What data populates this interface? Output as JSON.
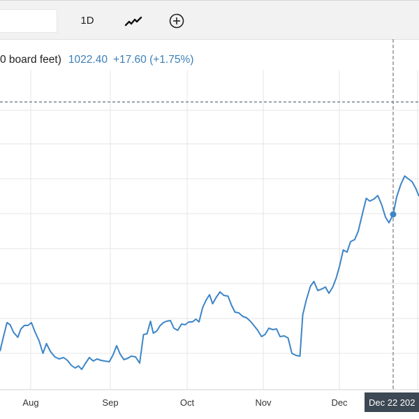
{
  "toolbar": {
    "search_value": "",
    "interval_label": "1D",
    "line_type_icon": "line-chart-icon",
    "indicator_icon": "circle-plus-icon"
  },
  "legend": {
    "name": "0 board feet)",
    "value": "1022.40",
    "change": "+17.60 (+1.75%)"
  },
  "crosshair": {
    "date_label": "Dec 22 202"
  },
  "colors": {
    "line": "#3d85c6",
    "grid": "#e6e6e6",
    "crosshair": "#777777",
    "toolbar_bg": "#f2f2f2",
    "label_bg": "#3c4853"
  },
  "chart_data": {
    "type": "line",
    "title": "",
    "xlabel": "",
    "ylabel": "",
    "x_tick_labels": [
      "Aug",
      "Sep",
      "Oct",
      "Nov",
      "Dec"
    ],
    "grid": true,
    "y_tick_labels_visible": false,
    "series": [
      {
        "values": [
          [
            0.0,
            805
          ],
          [
            4.0,
            822
          ],
          [
            10.0,
            846
          ],
          [
            14.5,
            843
          ],
          [
            19.5,
            832
          ],
          [
            25.5,
            825
          ],
          [
            30.0,
            837
          ],
          [
            35.0,
            842
          ],
          [
            40.0,
            842
          ],
          [
            45.0,
            846
          ],
          [
            50.0,
            833
          ],
          [
            56.0,
            820
          ],
          [
            61.5,
            802
          ],
          [
            66.5,
            816
          ],
          [
            72.0,
            805
          ],
          [
            78.5,
            797
          ],
          [
            84.5,
            794
          ],
          [
            91.0,
            796
          ],
          [
            96.5,
            792
          ],
          [
            102.0,
            785
          ],
          [
            107.5,
            781
          ],
          [
            112.5,
            784
          ],
          [
            117.0,
            779
          ],
          [
            122.5,
            788
          ],
          [
            128.0,
            796
          ],
          [
            133.5,
            791
          ],
          [
            139.0,
            794
          ],
          [
            144.5,
            792
          ],
          [
            150.0,
            791
          ],
          [
            156.5,
            790
          ],
          [
            162.0,
            800
          ],
          [
            167.0,
            813
          ],
          [
            172.0,
            801
          ],
          [
            177.5,
            793
          ],
          [
            183.0,
            795
          ],
          [
            188.0,
            798
          ],
          [
            194.0,
            797
          ],
          [
            200.0,
            788
          ],
          [
            205.5,
            829
          ],
          [
            210.5,
            830
          ],
          [
            215.5,
            848
          ],
          [
            219.5,
            831
          ],
          [
            224.5,
            834
          ],
          [
            229.5,
            842
          ],
          [
            234.0,
            846
          ],
          [
            238.5,
            848
          ],
          [
            244.0,
            849
          ],
          [
            249.0,
            838
          ],
          [
            254.5,
            835
          ],
          [
            260.0,
            844
          ],
          [
            265.0,
            843
          ],
          [
            270.5,
            847
          ],
          [
            275.5,
            847
          ],
          [
            280.5,
            851
          ],
          [
            285.0,
            847
          ],
          [
            290.0,
            867
          ],
          [
            295.0,
            878
          ],
          [
            300.0,
            886
          ],
          [
            304.5,
            873
          ],
          [
            309.5,
            882
          ],
          [
            315.0,
            890
          ],
          [
            320.5,
            885
          ],
          [
            326.5,
            884
          ],
          [
            331.5,
            871
          ],
          [
            336.5,
            861
          ],
          [
            342.0,
            860
          ],
          [
            347.5,
            855
          ],
          [
            353.0,
            853
          ],
          [
            358.5,
            848
          ],
          [
            363.5,
            842
          ],
          [
            369.0,
            835
          ],
          [
            374.5,
            826
          ],
          [
            379.5,
            829
          ],
          [
            385.0,
            838
          ],
          [
            390.5,
            836
          ],
          [
            396.0,
            837
          ],
          [
            401.0,
            826
          ],
          [
            407.0,
            827
          ],
          [
            412.5,
            824
          ],
          [
            418.0,
            802
          ],
          [
            424.0,
            799
          ],
          [
            429.5,
            798
          ],
          [
            433.5,
            857
          ],
          [
            438.5,
            878
          ],
          [
            444.5,
            898
          ],
          [
            449.5,
            905
          ],
          [
            455.0,
            892
          ],
          [
            460.5,
            894
          ],
          [
            466.0,
            897
          ],
          [
            471.0,
            888
          ],
          [
            476.5,
            897
          ],
          [
            481.5,
            910
          ],
          [
            486.5,
            928
          ],
          [
            491.5,
            950
          ],
          [
            497.0,
            947
          ],
          [
            502.0,
            962
          ],
          [
            508.0,
            965
          ],
          [
            513.0,
            977
          ],
          [
            519.0,
            1002
          ],
          [
            524.5,
            1024
          ],
          [
            529.5,
            1020
          ],
          [
            535.5,
            1023
          ],
          [
            541.0,
            1028
          ],
          [
            546.5,
            1015
          ],
          [
            552.0,
            997
          ],
          [
            557.0,
            989
          ],
          [
            563.0,
            1001
          ],
          [
            568.0,
            1026
          ],
          [
            574.0,
            1044
          ],
          [
            579.5,
            1056
          ],
          [
            584.5,
            1052
          ],
          [
            590.0,
            1048
          ],
          [
            595.5,
            1038
          ],
          [
            600.0,
            1027
          ]
        ]
      }
    ],
    "crosshair_point": {
      "x": 563.0,
      "y": 1001
    }
  }
}
